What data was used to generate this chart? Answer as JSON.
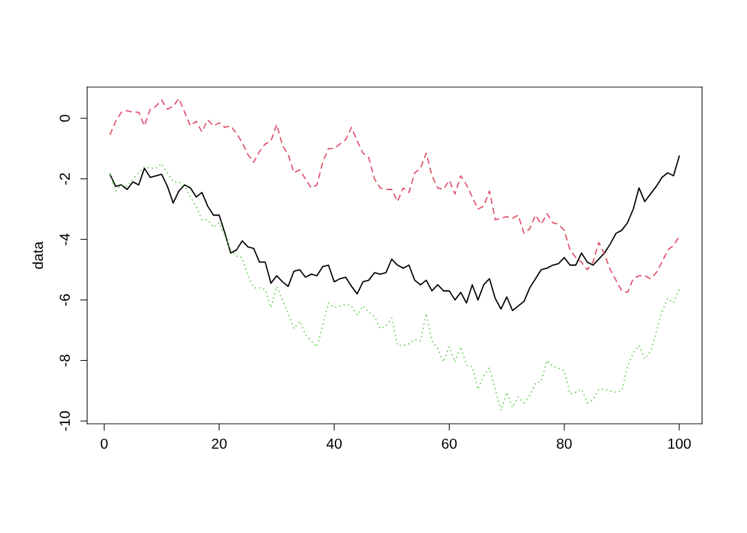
{
  "chart_data": {
    "type": "line",
    "ylabel": "data",
    "x": [
      1,
      2,
      3,
      4,
      5,
      6,
      7,
      8,
      9,
      10,
      11,
      12,
      13,
      14,
      15,
      16,
      17,
      18,
      19,
      20,
      21,
      22,
      23,
      24,
      25,
      26,
      27,
      28,
      29,
      30,
      31,
      32,
      33,
      34,
      35,
      36,
      37,
      38,
      39,
      40,
      41,
      42,
      43,
      44,
      45,
      46,
      47,
      48,
      49,
      50,
      51,
      52,
      53,
      54,
      55,
      56,
      57,
      58,
      59,
      60,
      61,
      62,
      63,
      64,
      65,
      66,
      67,
      68,
      69,
      70,
      71,
      72,
      73,
      74,
      75,
      76,
      77,
      78,
      79,
      80,
      81,
      82,
      83,
      84,
      85,
      86,
      87,
      88,
      89,
      90,
      91,
      92,
      93,
      94,
      95,
      96,
      97,
      98,
      99,
      100
    ],
    "xlim": [
      -2.96,
      103.96
    ],
    "xticks": [
      0,
      20,
      40,
      60,
      80,
      100
    ],
    "ylim": [
      -10.09,
      1.03
    ],
    "yticks": [
      -10,
      -8,
      -6,
      -4,
      -2,
      0
    ],
    "marker": "none",
    "series": [
      {
        "color": "#000000",
        "line_style": "solid",
        "values": [
          -1.85,
          -2.25,
          -2.2,
          -2.35,
          -2.1,
          -2.2,
          -1.65,
          -1.95,
          -1.9,
          -1.85,
          -2.25,
          -2.8,
          -2.4,
          -2.2,
          -2.3,
          -2.6,
          -2.45,
          -2.9,
          -3.2,
          -3.2,
          -3.8,
          -4.45,
          -4.35,
          -4.05,
          -4.25,
          -4.3,
          -4.75,
          -4.75,
          -5.45,
          -5.2,
          -5.4,
          -5.55,
          -5.05,
          -5.0,
          -5.25,
          -5.15,
          -5.2,
          -4.9,
          -4.85,
          -5.4,
          -5.3,
          -5.25,
          -5.55,
          -5.8,
          -5.4,
          -5.35,
          -5.1,
          -5.15,
          -5.1,
          -4.65,
          -4.85,
          -4.95,
          -4.85,
          -5.35,
          -5.5,
          -5.35,
          -5.7,
          -5.5,
          -5.7,
          -5.7,
          -6.0,
          -5.75,
          -6.1,
          -5.5,
          -6.0,
          -5.5,
          -5.3,
          -5.95,
          -6.3,
          -5.9,
          -6.35,
          -6.2,
          -6.05,
          -5.6,
          -5.3,
          -5.0,
          -4.95,
          -4.85,
          -4.8,
          -4.6,
          -4.85,
          -4.85,
          -4.45,
          -4.75,
          -4.85,
          -4.65,
          -4.45,
          -4.15,
          -3.8,
          -3.7,
          -3.45,
          -3.0,
          -2.3,
          -2.75,
          -2.5,
          -2.25,
          -1.95,
          -1.8,
          -1.9,
          -1.25
        ]
      },
      {
        "color": "#df536b",
        "line_style": "dashed",
        "values": [
          -0.55,
          -0.1,
          0.2,
          0.25,
          0.2,
          0.2,
          -0.25,
          0.3,
          0.4,
          0.6,
          0.3,
          0.4,
          0.65,
          0.2,
          -0.25,
          -0.1,
          -0.45,
          -0.05,
          -0.25,
          -0.15,
          -0.3,
          -0.25,
          -0.5,
          -0.8,
          -1.2,
          -1.45,
          -1.1,
          -0.85,
          -0.75,
          -0.2,
          -0.9,
          -1.2,
          -1.8,
          -1.7,
          -2.0,
          -2.3,
          -2.2,
          -1.45,
          -1.0,
          -1.0,
          -0.85,
          -0.7,
          -0.3,
          -0.75,
          -1.15,
          -1.3,
          -2.0,
          -2.3,
          -2.35,
          -2.35,
          -2.75,
          -2.3,
          -2.45,
          -1.8,
          -1.65,
          -1.15,
          -1.9,
          -2.3,
          -2.35,
          -2.05,
          -2.5,
          -1.9,
          -2.2,
          -2.6,
          -3.0,
          -2.9,
          -2.4,
          -3.35,
          -3.3,
          -3.25,
          -3.3,
          -3.2,
          -3.8,
          -3.65,
          -3.2,
          -3.5,
          -3.15,
          -3.45,
          -3.5,
          -3.7,
          -4.35,
          -4.6,
          -4.75,
          -5.0,
          -4.75,
          -4.1,
          -4.5,
          -5.0,
          -5.35,
          -5.7,
          -5.75,
          -5.3,
          -5.2,
          -5.2,
          -5.3,
          -5.1,
          -4.75,
          -4.35,
          -4.2,
          -3.9
        ]
      },
      {
        "color": "#61d04f",
        "line_style": "dotted",
        "values": [
          -1.85,
          -2.4,
          -2.2,
          -2.25,
          -2.0,
          -1.8,
          -1.6,
          -1.65,
          -1.65,
          -1.5,
          -1.8,
          -2.1,
          -2.1,
          -2.25,
          -2.6,
          -2.9,
          -3.35,
          -3.35,
          -3.6,
          -3.45,
          -3.9,
          -4.35,
          -4.55,
          -4.6,
          -5.2,
          -5.6,
          -5.6,
          -5.65,
          -6.25,
          -5.55,
          -6.0,
          -6.45,
          -6.95,
          -6.7,
          -7.15,
          -7.35,
          -7.55,
          -6.85,
          -6.1,
          -6.25,
          -6.2,
          -6.15,
          -6.2,
          -6.5,
          -6.2,
          -6.4,
          -6.55,
          -6.95,
          -6.85,
          -6.6,
          -7.5,
          -7.5,
          -7.45,
          -7.3,
          -7.35,
          -6.45,
          -7.35,
          -7.6,
          -8.05,
          -7.55,
          -8.05,
          -7.55,
          -8.15,
          -8.2,
          -8.95,
          -8.5,
          -8.25,
          -8.95,
          -9.65,
          -9.05,
          -9.55,
          -9.2,
          -9.4,
          -9.15,
          -8.75,
          -8.7,
          -8.0,
          -8.2,
          -8.25,
          -8.35,
          -9.1,
          -9.05,
          -8.95,
          -9.4,
          -9.3,
          -8.95,
          -8.95,
          -9.0,
          -9.05,
          -9.0,
          -8.2,
          -7.75,
          -7.5,
          -7.95,
          -7.7,
          -7.05,
          -6.4,
          -5.95,
          -6.1,
          -5.65
        ]
      }
    ]
  }
}
